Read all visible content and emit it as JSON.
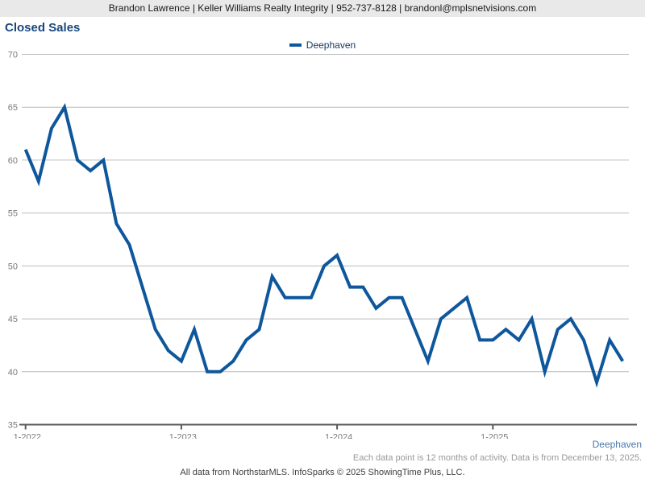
{
  "header": {
    "text": "Brandon Lawrence | Keller Williams Realty Integrity | 952-737-8128 | brandonl@mplsnetvisions.com"
  },
  "title": "Closed Sales",
  "legend": {
    "label": "Deephaven",
    "swatch_color": "#0e579c"
  },
  "chart_data": {
    "type": "line",
    "title": "Closed Sales",
    "series_name": "Deephaven",
    "x": [
      "1-2022",
      "2-2022",
      "3-2022",
      "4-2022",
      "5-2022",
      "6-2022",
      "7-2022",
      "8-2022",
      "9-2022",
      "10-2022",
      "11-2022",
      "12-2022",
      "1-2023",
      "2-2023",
      "3-2023",
      "4-2023",
      "5-2023",
      "6-2023",
      "7-2023",
      "8-2023",
      "9-2023",
      "10-2023",
      "11-2023",
      "12-2023",
      "1-2024",
      "2-2024",
      "3-2024",
      "4-2024",
      "5-2024",
      "6-2024",
      "7-2024",
      "8-2024",
      "9-2024",
      "10-2024",
      "11-2024",
      "12-2024",
      "1-2025",
      "2-2025",
      "3-2025",
      "4-2025",
      "5-2025",
      "6-2025",
      "7-2025",
      "8-2025",
      "9-2025",
      "10-2025",
      "11-2025"
    ],
    "values": [
      61,
      58,
      63,
      65,
      60,
      59,
      60,
      54,
      52,
      48,
      44,
      42,
      41,
      44,
      40,
      40,
      41,
      43,
      44,
      49,
      47,
      47,
      47,
      50,
      51,
      48,
      48,
      46,
      47,
      47,
      44,
      41,
      45,
      46,
      47,
      43,
      43,
      44,
      43,
      45,
      40,
      44,
      45,
      43,
      39,
      43,
      41
    ],
    "ylim": [
      35,
      70
    ],
    "yticks": [
      35,
      40,
      45,
      50,
      55,
      60,
      65,
      70
    ],
    "xticks": [
      {
        "label": "1-2022",
        "index": 0
      },
      {
        "label": "1-2023",
        "index": 12
      },
      {
        "label": "1-2024",
        "index": 24
      },
      {
        "label": "1-2025",
        "index": 36
      }
    ],
    "grid": true,
    "legend_position": "top-center",
    "line_color": "#0e579c",
    "grid_color": "#bbbbbb",
    "axis_color": "#58595b",
    "tick_label_color": "#7a7a7a"
  },
  "footer": {
    "series_label": "Deephaven",
    "note": "Each data point is 12 months of activity. Data is from December 13, 2025.",
    "credit": "All data from NorthstarMLS. InfoSparks © 2025 ShowingTime Plus, LLC."
  }
}
